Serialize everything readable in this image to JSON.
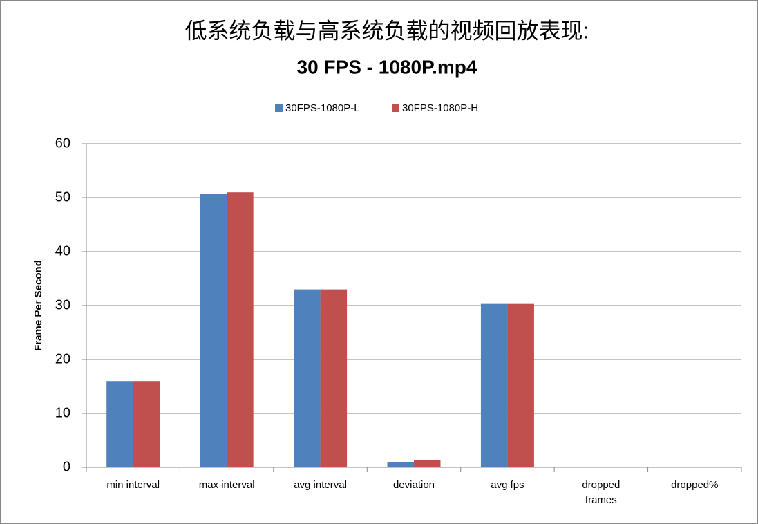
{
  "chart_data": {
    "type": "bar",
    "title": "低系统负载与高系统负载的视频回放表现:",
    "subtitle": "30 FPS - 1080P.mp4",
    "y_label": "Frame Per Second",
    "categories": [
      "min interval",
      "max interval",
      "avg interval",
      "deviation",
      "avg fps",
      "dropped frames",
      "dropped%"
    ],
    "series": [
      {
        "name": "30FPS-1080P-L",
        "color": "#4f81bd",
        "values": [
          16,
          50.7,
          33,
          1.0,
          30.3,
          0,
          0
        ]
      },
      {
        "name": "30FPS-1080P-H",
        "color": "#c0504d",
        "values": [
          16,
          51,
          33,
          1.3,
          30.3,
          0,
          0
        ]
      }
    ],
    "ylim": [
      0,
      60
    ],
    "yticks": [
      0,
      10,
      20,
      30,
      40,
      50,
      60
    ],
    "grid": true,
    "legend": "top"
  }
}
